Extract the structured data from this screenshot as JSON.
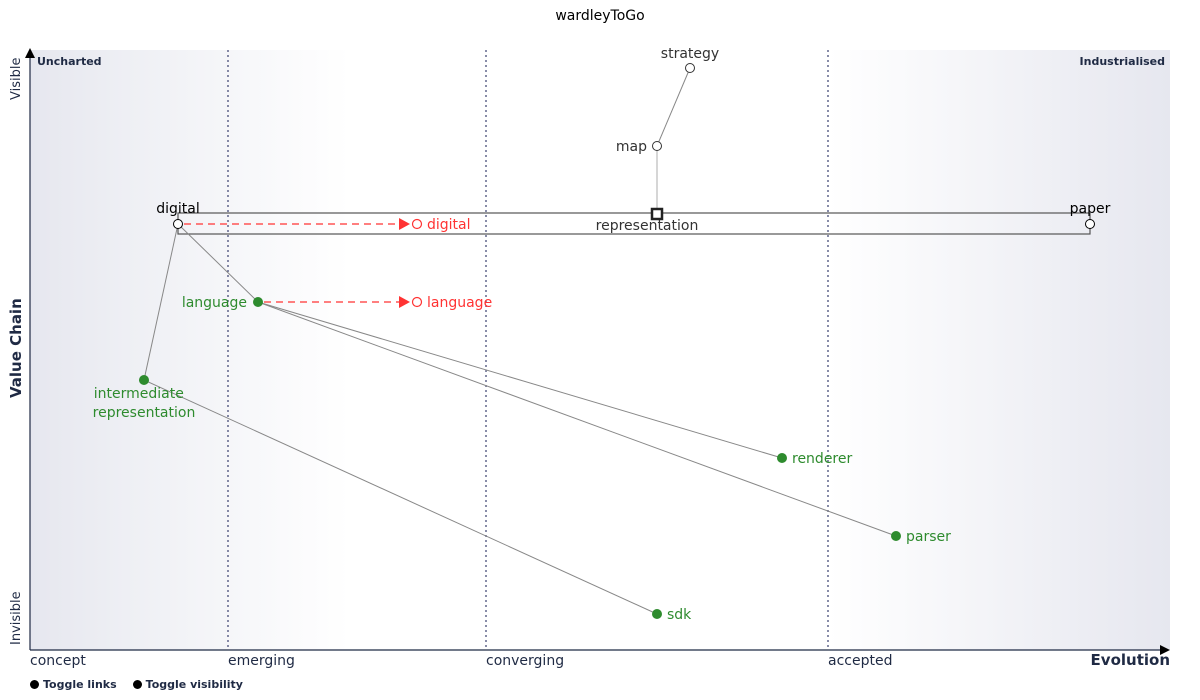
{
  "title": "wardleyToGo",
  "y_axis": {
    "label": "Value Chain",
    "top": "Visible",
    "bottom": "Invisible"
  },
  "x_axis": {
    "label": "Evolution",
    "stages": [
      "concept",
      "emerging",
      "converging",
      "accepted"
    ]
  },
  "corners": {
    "left": "Uncharted",
    "right": "Industrialised"
  },
  "components": [
    {
      "id": "strategy",
      "label": "strategy",
      "type": "open",
      "color": "#333333"
    },
    {
      "id": "map",
      "label": "map",
      "type": "open",
      "color": "#333333"
    },
    {
      "id": "representation",
      "label": "representation",
      "type": "square",
      "color": "#333333"
    },
    {
      "id": "digital",
      "label": "digital",
      "type": "open",
      "color": "#000000"
    },
    {
      "id": "paper",
      "label": "paper",
      "type": "open",
      "color": "#000000"
    },
    {
      "id": "digital_future",
      "label": "digital",
      "type": "open",
      "color": "#ff3333"
    },
    {
      "id": "language",
      "label": "language",
      "type": "filled",
      "color": "#2e8b2e"
    },
    {
      "id": "language_future",
      "label": "language",
      "type": "open",
      "color": "#ff3333"
    },
    {
      "id": "ir",
      "label": "intermediate representation",
      "type": "filled",
      "color": "#2e8b2e"
    },
    {
      "id": "renderer",
      "label": "renderer",
      "type": "filled",
      "color": "#2e8b2e"
    },
    {
      "id": "parser",
      "label": "parser",
      "type": "filled",
      "color": "#2e8b2e"
    },
    {
      "id": "sdk",
      "label": "sdk",
      "type": "filled",
      "color": "#2e8b2e"
    }
  ],
  "links": [
    [
      "strategy",
      "map"
    ],
    [
      "map",
      "representation"
    ],
    [
      "digital",
      "ir"
    ],
    [
      "digital",
      "language"
    ],
    [
      "language",
      "renderer"
    ],
    [
      "language",
      "parser"
    ],
    [
      "ir",
      "sdk"
    ]
  ],
  "evolutions": [
    [
      "digital",
      "digital_future"
    ],
    [
      "language",
      "language_future"
    ]
  ],
  "controls": {
    "toggle_links": "Toggle links",
    "toggle_visibility": "Toggle visibility"
  },
  "colors": {
    "axis": "#1f2a44",
    "link": "#888888",
    "evolve": "#ff3333",
    "green": "#2e8b2e"
  }
}
